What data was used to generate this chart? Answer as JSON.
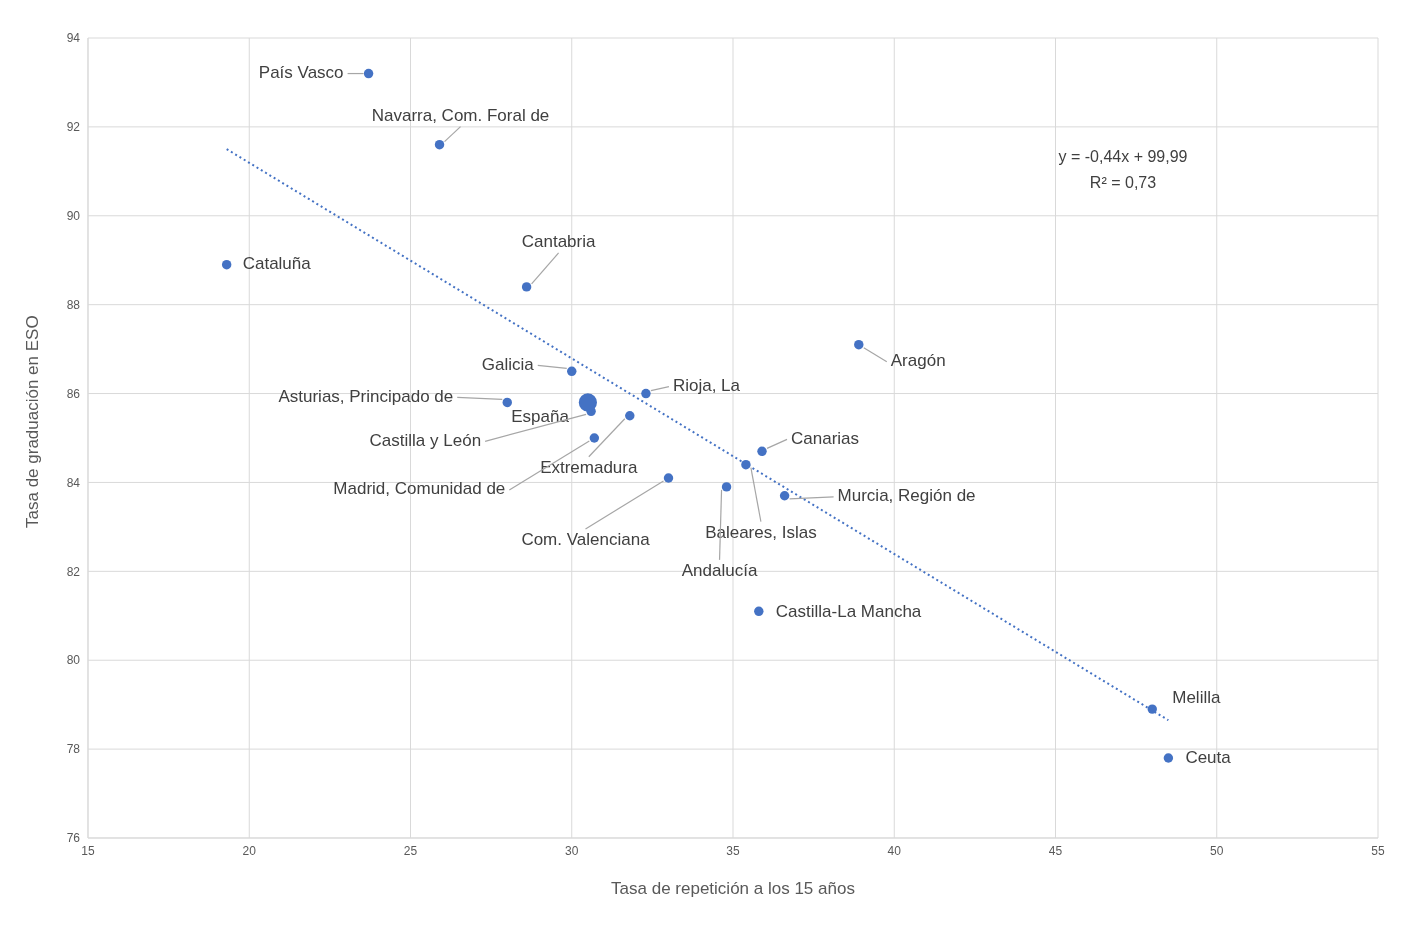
{
  "chart_data": {
    "type": "scatter",
    "xlabel": "Tasa de repetición a los 15 años",
    "ylabel": "Tasa de graduación en  ESO",
    "xlim": [
      15,
      55
    ],
    "xticks": [
      15,
      20,
      25,
      30,
      35,
      40,
      45,
      50,
      55
    ],
    "ylim": [
      76,
      94
    ],
    "yticks": [
      76,
      78,
      80,
      82,
      84,
      86,
      88,
      90,
      92,
      94
    ],
    "grid": true,
    "marker": "circle",
    "series": [
      {
        "color": "#4472c4",
        "x": [
          23.7,
          25.9,
          19.3,
          28.6,
          38.9,
          30.0,
          32.3,
          28.0,
          30.6,
          31.8,
          30.7,
          33.0,
          35.9,
          35.4,
          34.8,
          36.6,
          35.8,
          48.0,
          48.5
        ],
        "values": [
          93.2,
          91.6,
          88.9,
          88.4,
          87.1,
          86.5,
          86.0,
          85.8,
          85.6,
          85.5,
          85.0,
          84.1,
          84.7,
          84.4,
          83.9,
          83.7,
          81.1,
          78.9,
          77.8
        ]
      },
      {
        "color": "#4472c4",
        "x": [
          30.5
        ],
        "values": [
          85.8
        ]
      },
      {
        "type": "line",
        "color": "#4472c4",
        "line_style": "dotted",
        "marker": "none",
        "x": [
          19.3,
          48.5
        ],
        "values": [
          91.5,
          78.65
        ]
      }
    ],
    "annotations": [
      {
        "text": "País Vasco",
        "x": 23.7,
        "y": 93.2
      },
      {
        "text": "Navarra, Com. Foral de",
        "x": 25.9,
        "y": 91.6
      },
      {
        "text": "Cataluña",
        "x": 19.3,
        "y": 88.9
      },
      {
        "text": "Cantabria",
        "x": 28.6,
        "y": 88.4
      },
      {
        "text": "Aragón",
        "x": 38.9,
        "y": 87.1
      },
      {
        "text": "Galicia",
        "x": 30.0,
        "y": 86.5
      },
      {
        "text": "Rioja, La",
        "x": 32.3,
        "y": 86.0
      },
      {
        "text": "Asturias, Principado de",
        "x": 28.0,
        "y": 85.8
      },
      {
        "text": "España",
        "x": 30.5,
        "y": 85.8
      },
      {
        "text": "Castilla y León",
        "x": 30.6,
        "y": 85.6
      },
      {
        "text": "Extremadura",
        "x": 31.8,
        "y": 85.5
      },
      {
        "text": "Madrid, Comunidad de",
        "x": 30.7,
        "y": 85.0
      },
      {
        "text": "Com. Valenciana",
        "x": 33.0,
        "y": 84.1
      },
      {
        "text": "Canarias",
        "x": 35.9,
        "y": 84.7
      },
      {
        "text": "Baleares, Islas",
        "x": 35.4,
        "y": 84.4
      },
      {
        "text": "Andalucía",
        "x": 34.8,
        "y": 83.9
      },
      {
        "text": "Murcia, Región de",
        "x": 36.6,
        "y": 83.7
      },
      {
        "text": "Castilla-La Mancha",
        "x": 35.8,
        "y": 81.1
      },
      {
        "text": "Melilla",
        "x": 48.0,
        "y": 78.9
      },
      {
        "text": "Ceuta",
        "x": 48.5,
        "y": 77.8
      },
      "y = -0,44x + 99,99",
      "R² = 0,73"
    ]
  }
}
